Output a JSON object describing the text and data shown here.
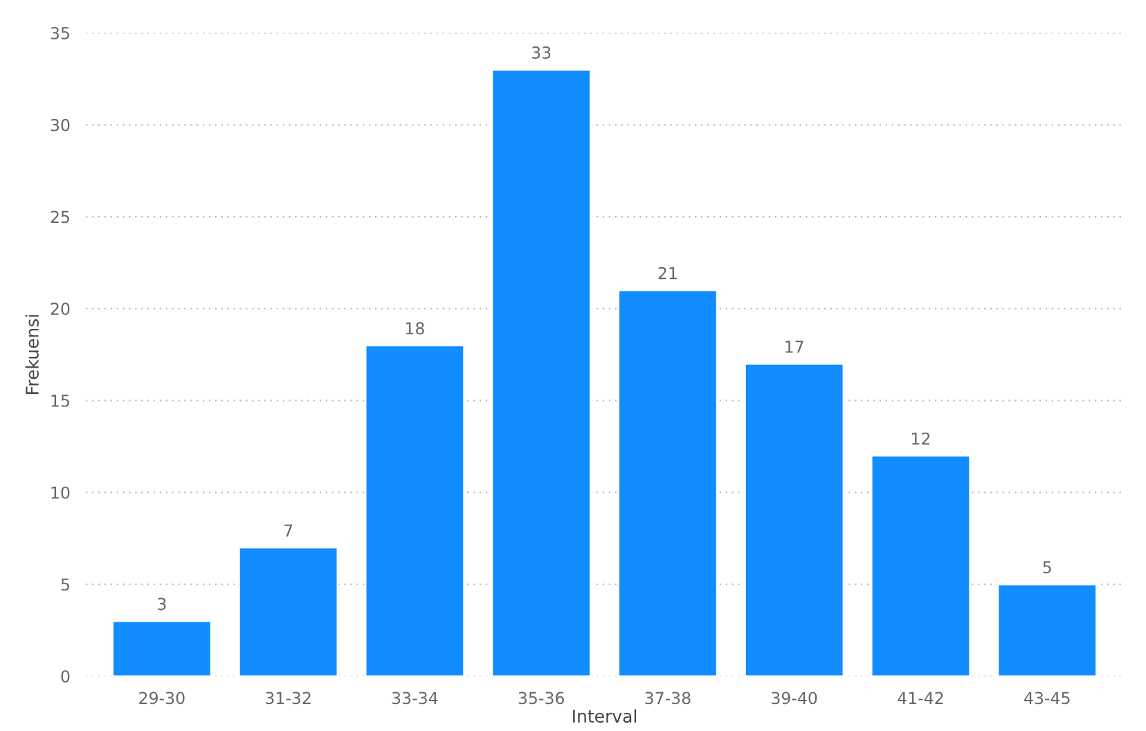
{
  "chart_data": {
    "type": "bar",
    "xlabel": "Interval",
    "ylabel": "Frekuensi",
    "categories": [
      "29-30",
      "31-32",
      "33-34",
      "35-36",
      "37-38",
      "39-40",
      "41-42",
      "43-45"
    ],
    "values": [
      3,
      7,
      18,
      33,
      21,
      17,
      12,
      5
    ],
    "color": "#118dff",
    "ylim": [
      0,
      35
    ],
    "yticks": [
      0,
      5,
      10,
      15,
      20,
      25,
      30,
      35
    ],
    "grid": "y",
    "data_labels": true
  }
}
